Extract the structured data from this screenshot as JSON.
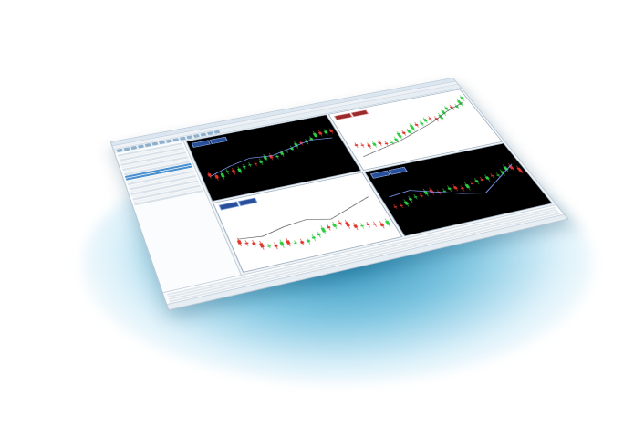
{
  "colors": {
    "glow": "#0078aa",
    "window_bg": "#f2f5f8",
    "chart_dark_bg": "#000000",
    "chart_light_bg": "#ffffff",
    "bull_candle": "#2ecc40",
    "bear_candle": "#e0352b",
    "selected_row": "#4a8fcf"
  },
  "icons": {
    "toolbar_buttons": [
      "new-chart-icon",
      "profiles-icon",
      "market-watch-icon",
      "navigator-icon",
      "terminal-icon",
      "tester-icon",
      "new-order-icon",
      "autotrading-icon",
      "buy-icon",
      "sell-icon",
      "zoom-in-icon",
      "zoom-out-icon",
      "crosshair-icon",
      "line-icon",
      "period-icon"
    ]
  },
  "charts": [
    {
      "id": "chart-top-left",
      "theme": "dark"
    },
    {
      "id": "chart-top-right",
      "theme": "light"
    },
    {
      "id": "chart-bottom-left",
      "theme": "light"
    },
    {
      "id": "chart-bottom-right",
      "theme": "dark"
    }
  ]
}
